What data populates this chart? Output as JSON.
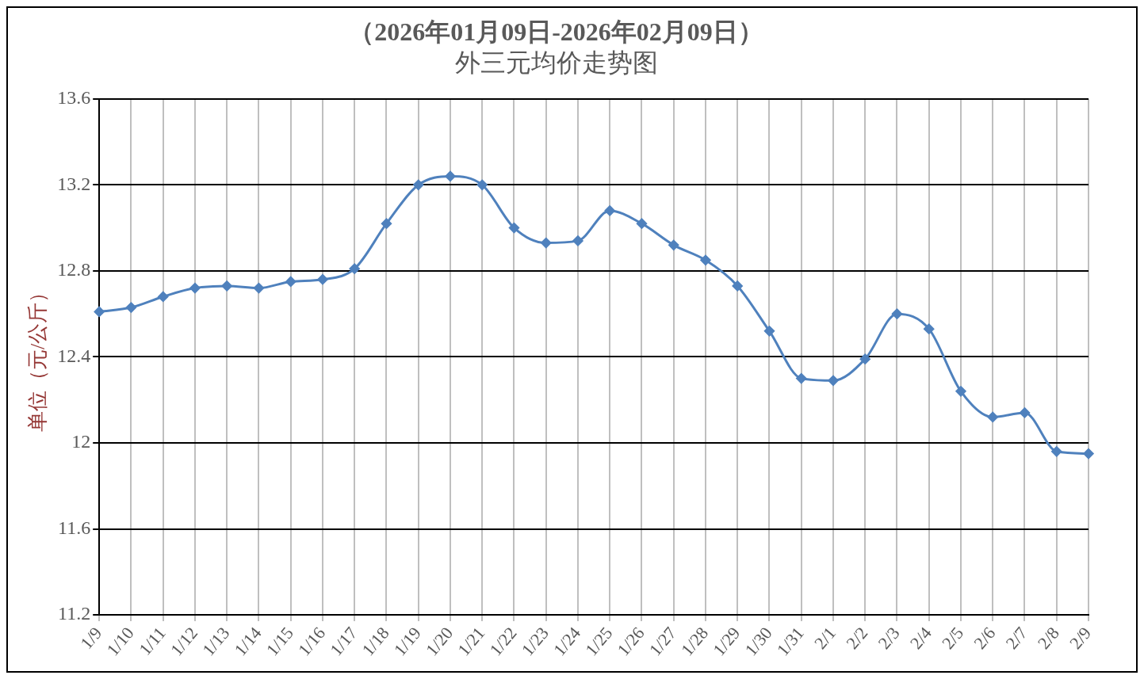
{
  "chart_data": {
    "type": "line",
    "title": "（2026年01月09日-2026年02月09日）",
    "subtitle": "外三元均价走势图",
    "ylabel": "单位（元/公斤）",
    "categories": [
      "1/9",
      "1/10",
      "1/11",
      "1/12",
      "1/13",
      "1/14",
      "1/15",
      "1/16",
      "1/17",
      "1/18",
      "1/19",
      "1/20",
      "1/21",
      "1/22",
      "1/23",
      "1/24",
      "1/25",
      "1/26",
      "1/27",
      "1/28",
      "1/29",
      "1/30",
      "1/31",
      "2/1",
      "2/2",
      "2/3",
      "2/4",
      "2/5",
      "2/6",
      "2/7",
      "2/8",
      "2/9"
    ],
    "series": [
      {
        "color": "#4f81bd",
        "values": [
          12.61,
          12.63,
          12.68,
          12.72,
          12.73,
          12.72,
          12.75,
          12.76,
          12.81,
          13.02,
          13.2,
          13.24,
          13.2,
          13.0,
          12.93,
          12.94,
          13.08,
          13.02,
          12.92,
          12.85,
          12.73,
          12.52,
          12.3,
          12.29,
          12.39,
          12.6,
          12.53,
          12.24,
          12.12,
          12.14,
          11.96,
          11.95
        ]
      }
    ],
    "ylim": [
      11.2,
      13.6
    ],
    "yticks": [
      {
        "value": 11.2,
        "label": "11.2"
      },
      {
        "value": 11.6,
        "label": "11.6"
      },
      {
        "value": 12,
        "label": "12"
      },
      {
        "value": 12.4,
        "label": "12.4"
      },
      {
        "value": 12.8,
        "label": "12.8"
      },
      {
        "value": 13.2,
        "label": "13.2"
      },
      {
        "value": 13.6,
        "label": "13.6"
      }
    ],
    "grid": true,
    "marker": "diamond",
    "line_style": "solid",
    "legend": false
  }
}
